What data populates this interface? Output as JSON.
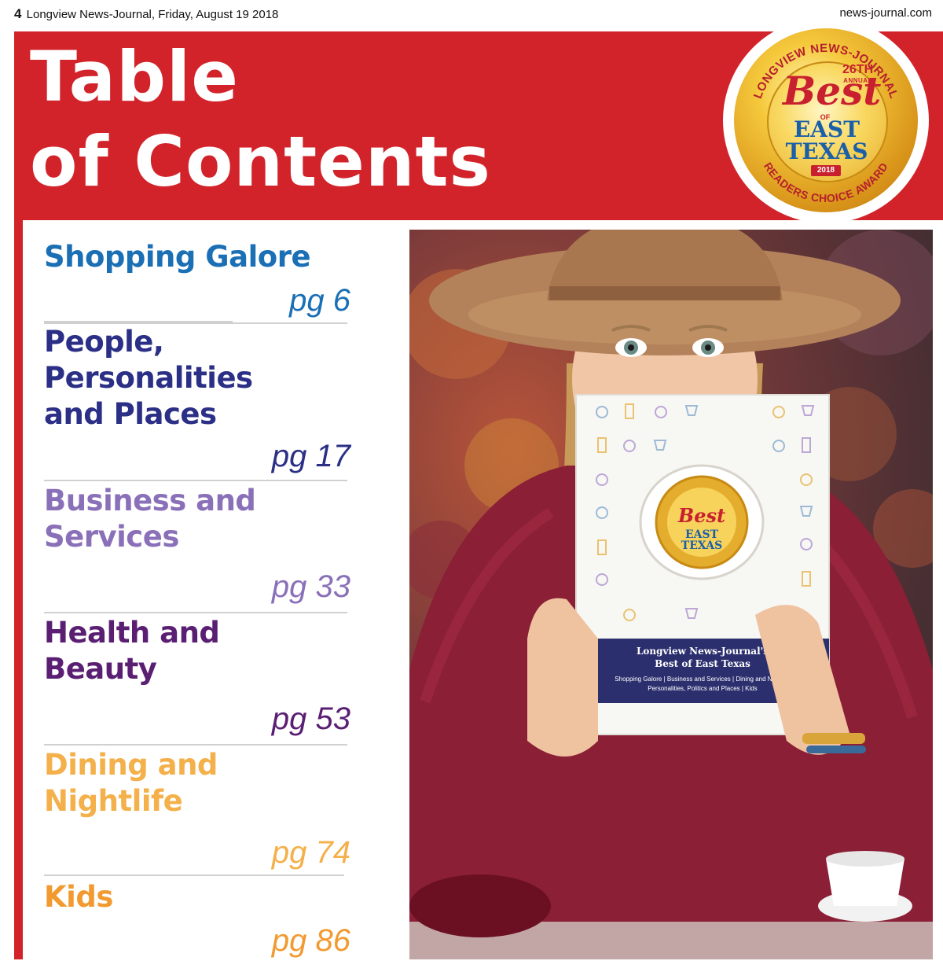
{
  "header": {
    "page_number": "4",
    "publication_line": "Longview News-Journal, Friday, August 19 2018",
    "website": "news-journal.com"
  },
  "title": {
    "line1": "Table",
    "line2": "of Contents"
  },
  "badge": {
    "arc_top": "LONGVIEW NEWS-JOURNAL",
    "annual_number": "26TH",
    "annual_word": "ANNUAL",
    "best": "Best",
    "of": "OF",
    "east": "EAST",
    "texas": "TEXAS",
    "year": "2018",
    "arc_bottom": "READERS CHOICE AWARD"
  },
  "toc": {
    "entries": [
      {
        "lines": [
          "Shopping Galore"
        ],
        "page": "pg 6",
        "color": "#1a6fb5"
      },
      {
        "lines": [
          "People,",
          "Personalities",
          "and Places"
        ],
        "page": "pg 17",
        "color": "#2b2f86"
      },
      {
        "lines": [
          "Business and",
          "Services"
        ],
        "page": "pg 33",
        "color": "#8a70b8"
      },
      {
        "lines": [
          "Health and",
          "Beauty"
        ],
        "page": "pg 53",
        "color": "#5a1f73"
      },
      {
        "lines": [
          "Dining and",
          "Nightlife"
        ],
        "page": "pg 74",
        "color": "#f4b04a"
      },
      {
        "lines": [
          "Kids"
        ],
        "page": "pg 86",
        "color": "#f29a30"
      }
    ]
  },
  "photo": {
    "book_title_line1": "Longview News-Journal's",
    "book_title_line2": "Best of East Texas",
    "book_categories_line1": "Shopping Galore | Business and Services | Dining and Nightlife",
    "book_categories_line2": "Personalities, Politics and Places | Kids"
  },
  "colors": {
    "banner_red": "#d2232a",
    "gold": "#e5ad2e",
    "badge_blue": "#1a5fa8"
  }
}
